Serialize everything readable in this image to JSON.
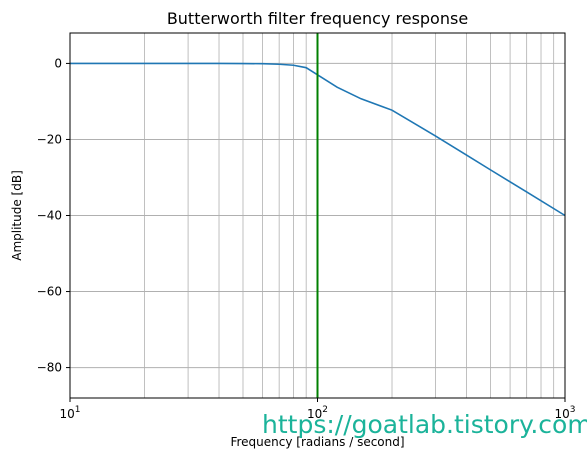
{
  "chart_data": {
    "type": "line",
    "title": "Butterworth filter frequency response",
    "xlabel": "Frequency [radians / second]",
    "ylabel": "Amplitude [dB]",
    "xscale": "log",
    "xlim": [
      10,
      1000
    ],
    "ylim": [
      -88,
      8
    ],
    "xticks": [
      {
        "value": 10,
        "base": "10",
        "exp": "1"
      },
      {
        "value": 100,
        "base": "10",
        "exp": "2"
      },
      {
        "value": 1000,
        "base": "10",
        "exp": "3"
      }
    ],
    "yticks": [
      {
        "value": 0,
        "label": "0"
      },
      {
        "value": -20,
        "label": "−20"
      },
      {
        "value": -40,
        "label": "−40"
      },
      {
        "value": -60,
        "label": "−60"
      },
      {
        "value": -80,
        "label": "−80"
      }
    ],
    "grid": "both (major and minor)",
    "series": [
      {
        "color": "#1f77b4",
        "x": [
          10,
          20,
          30,
          40,
          50,
          60,
          70,
          80,
          90,
          100,
          120,
          150,
          200,
          300,
          400,
          500,
          700,
          1000
        ],
        "y": [
          0,
          0,
          0,
          -0.01,
          -0.03,
          -0.08,
          -0.22,
          -0.48,
          -1.12,
          -3.01,
          -6.25,
          -9.31,
          -12.3,
          -19.1,
          -24.1,
          -28.0,
          -33.8,
          -40.0
        ]
      }
    ],
    "vline": {
      "x": 100,
      "color": "#008000"
    }
  },
  "watermark": "https://goatlab.tistory.com"
}
